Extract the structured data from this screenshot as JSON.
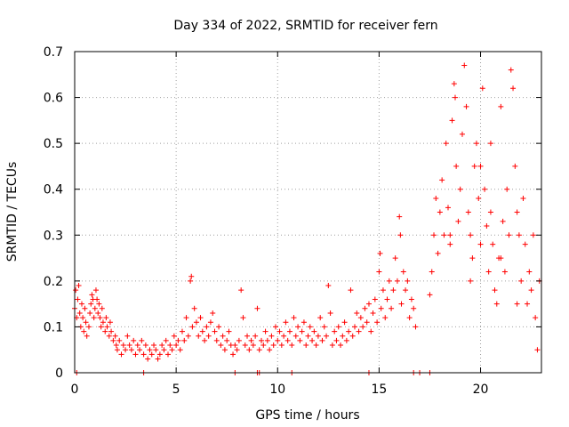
{
  "chart_data": {
    "type": "scatter",
    "title": "Day 334 of 2022, SRMTID for receiver fern",
    "xlabel": "GPS time / hours",
    "ylabel": "SRMTID / TECUs",
    "xlim": [
      0,
      23
    ],
    "ylim": [
      0,
      0.7
    ],
    "xticks": [
      0,
      5,
      10,
      15,
      20
    ],
    "yticks": [
      0,
      0.1,
      0.2,
      0.3,
      0.4,
      0.5,
      0.6,
      0.7
    ],
    "xtick_labels": [
      "0",
      "5",
      "10",
      "15",
      "20"
    ],
    "ytick_labels": [
      "0",
      "0.1",
      "0.2",
      "0.3",
      "0.4",
      "0.5",
      "0.6",
      "0.7"
    ],
    "grid": true,
    "marker": "plus",
    "color": "#ff0000",
    "series": [
      {
        "name": "SRMTID",
        "points": [
          [
            0.0,
            0.14
          ],
          [
            0.05,
            0.18
          ],
          [
            0.1,
            0.12
          ],
          [
            0.15,
            0.16
          ],
          [
            0.2,
            0.19
          ],
          [
            0.25,
            0.13
          ],
          [
            0.3,
            0.1
          ],
          [
            0.35,
            0.15
          ],
          [
            0.4,
            0.12
          ],
          [
            0.45,
            0.09
          ],
          [
            0.5,
            0.14
          ],
          [
            0.55,
            0.11
          ],
          [
            0.6,
            0.08
          ],
          [
            0.7,
            0.1
          ],
          [
            0.75,
            0.13
          ],
          [
            0.8,
            0.15
          ],
          [
            0.85,
            0.17
          ],
          [
            0.9,
            0.16
          ],
          [
            0.95,
            0.12
          ],
          [
            1.0,
            0.14
          ],
          [
            1.05,
            0.18
          ],
          [
            1.1,
            0.16
          ],
          [
            1.15,
            0.13
          ],
          [
            1.2,
            0.15
          ],
          [
            1.25,
            0.12
          ],
          [
            1.3,
            0.1
          ],
          [
            1.35,
            0.14
          ],
          [
            1.4,
            0.11
          ],
          [
            1.5,
            0.09
          ],
          [
            1.55,
            0.12
          ],
          [
            1.6,
            0.1
          ],
          [
            1.7,
            0.08
          ],
          [
            1.75,
            0.11
          ],
          [
            1.8,
            0.09
          ],
          [
            1.9,
            0.07
          ],
          [
            2.0,
            0.08
          ],
          [
            2.05,
            0.06
          ],
          [
            2.1,
            0.05
          ],
          [
            2.2,
            0.07
          ],
          [
            2.3,
            0.04
          ],
          [
            2.4,
            0.06
          ],
          [
            2.5,
            0.05
          ],
          [
            2.6,
            0.08
          ],
          [
            2.7,
            0.06
          ],
          [
            2.8,
            0.05
          ],
          [
            2.9,
            0.07
          ],
          [
            3.0,
            0.04
          ],
          [
            3.1,
            0.06
          ],
          [
            3.2,
            0.05
          ],
          [
            3.3,
            0.07
          ],
          [
            3.4,
            0.04
          ],
          [
            3.5,
            0.06
          ],
          [
            3.6,
            0.03
          ],
          [
            3.7,
            0.05
          ],
          [
            3.8,
            0.04
          ],
          [
            3.9,
            0.06
          ],
          [
            4.0,
            0.05
          ],
          [
            4.1,
            0.03
          ],
          [
            4.2,
            0.04
          ],
          [
            4.3,
            0.06
          ],
          [
            4.4,
            0.05
          ],
          [
            4.5,
            0.07
          ],
          [
            4.6,
            0.04
          ],
          [
            4.7,
            0.06
          ],
          [
            4.8,
            0.05
          ],
          [
            4.9,
            0.08
          ],
          [
            5.0,
            0.06
          ],
          [
            5.1,
            0.07
          ],
          [
            5.2,
            0.05
          ],
          [
            5.3,
            0.09
          ],
          [
            5.4,
            0.07
          ],
          [
            5.5,
            0.12
          ],
          [
            5.6,
            0.08
          ],
          [
            5.7,
            0.2
          ],
          [
            5.75,
            0.21
          ],
          [
            5.8,
            0.1
          ],
          [
            5.9,
            0.14
          ],
          [
            6.0,
            0.11
          ],
          [
            6.1,
            0.08
          ],
          [
            6.2,
            0.12
          ],
          [
            6.3,
            0.09
          ],
          [
            6.4,
            0.07
          ],
          [
            6.5,
            0.1
          ],
          [
            6.6,
            0.08
          ],
          [
            6.7,
            0.11
          ],
          [
            6.8,
            0.13
          ],
          [
            6.9,
            0.09
          ],
          [
            7.0,
            0.07
          ],
          [
            7.1,
            0.1
          ],
          [
            7.2,
            0.06
          ],
          [
            7.3,
            0.08
          ],
          [
            7.4,
            0.05
          ],
          [
            7.5,
            0.07
          ],
          [
            7.6,
            0.09
          ],
          [
            7.7,
            0.06
          ],
          [
            7.8,
            0.04
          ],
          [
            7.9,
            0.06
          ],
          [
            8.0,
            0.05
          ],
          [
            8.1,
            0.07
          ],
          [
            8.2,
            0.18
          ],
          [
            8.3,
            0.12
          ],
          [
            8.4,
            0.06
          ],
          [
            8.5,
            0.08
          ],
          [
            8.6,
            0.05
          ],
          [
            8.7,
            0.07
          ],
          [
            8.8,
            0.06
          ],
          [
            8.9,
            0.08
          ],
          [
            9.0,
            0.14
          ],
          [
            9.1,
            0.05
          ],
          [
            9.2,
            0.07
          ],
          [
            9.3,
            0.06
          ],
          [
            9.4,
            0.09
          ],
          [
            9.5,
            0.07
          ],
          [
            9.6,
            0.05
          ],
          [
            9.7,
            0.08
          ],
          [
            9.8,
            0.06
          ],
          [
            9.9,
            0.1
          ],
          [
            10.0,
            0.07
          ],
          [
            10.1,
            0.09
          ],
          [
            10.2,
            0.06
          ],
          [
            10.3,
            0.08
          ],
          [
            10.4,
            0.11
          ],
          [
            10.5,
            0.07
          ],
          [
            10.6,
            0.09
          ],
          [
            10.7,
            0.06
          ],
          [
            10.8,
            0.12
          ],
          [
            10.9,
            0.08
          ],
          [
            11.0,
            0.1
          ],
          [
            11.1,
            0.07
          ],
          [
            11.2,
            0.09
          ],
          [
            11.3,
            0.11
          ],
          [
            11.4,
            0.06
          ],
          [
            11.5,
            0.08
          ],
          [
            11.6,
            0.1
          ],
          [
            11.7,
            0.07
          ],
          [
            11.8,
            0.09
          ],
          [
            11.9,
            0.06
          ],
          [
            12.0,
            0.08
          ],
          [
            12.1,
            0.12
          ],
          [
            12.2,
            0.07
          ],
          [
            12.3,
            0.1
          ],
          [
            12.4,
            0.08
          ],
          [
            12.5,
            0.19
          ],
          [
            12.6,
            0.13
          ],
          [
            12.7,
            0.06
          ],
          [
            12.8,
            0.09
          ],
          [
            12.9,
            0.07
          ],
          [
            13.0,
            0.1
          ],
          [
            13.1,
            0.06
          ],
          [
            13.2,
            0.08
          ],
          [
            13.3,
            0.11
          ],
          [
            13.4,
            0.07
          ],
          [
            13.5,
            0.09
          ],
          [
            13.6,
            0.18
          ],
          [
            13.7,
            0.08
          ],
          [
            13.8,
            0.1
          ],
          [
            13.9,
            0.13
          ],
          [
            14.0,
            0.09
          ],
          [
            14.1,
            0.12
          ],
          [
            14.2,
            0.1
          ],
          [
            14.3,
            0.14
          ],
          [
            14.4,
            0.11
          ],
          [
            14.5,
            0.15
          ],
          [
            14.6,
            0.09
          ],
          [
            14.7,
            0.13
          ],
          [
            14.8,
            0.16
          ],
          [
            14.9,
            0.11
          ],
          [
            15.0,
            0.22
          ],
          [
            15.05,
            0.26
          ],
          [
            15.1,
            0.14
          ],
          [
            15.2,
            0.18
          ],
          [
            15.3,
            0.12
          ],
          [
            15.4,
            0.16
          ],
          [
            15.5,
            0.2
          ],
          [
            15.6,
            0.14
          ],
          [
            15.7,
            0.18
          ],
          [
            15.8,
            0.25
          ],
          [
            15.9,
            0.2
          ],
          [
            16.0,
            0.34
          ],
          [
            16.05,
            0.3
          ],
          [
            16.1,
            0.15
          ],
          [
            16.2,
            0.22
          ],
          [
            16.3,
            0.18
          ],
          [
            16.4,
            0.2
          ],
          [
            16.5,
            0.12
          ],
          [
            16.6,
            0.16
          ],
          [
            16.7,
            0.14
          ],
          [
            16.8,
            0.1
          ],
          [
            17.5,
            0.17
          ],
          [
            17.6,
            0.22
          ],
          [
            17.7,
            0.3
          ],
          [
            17.8,
            0.38
          ],
          [
            17.9,
            0.26
          ],
          [
            18.0,
            0.35
          ],
          [
            18.1,
            0.42
          ],
          [
            18.2,
            0.3
          ],
          [
            18.3,
            0.5
          ],
          [
            18.4,
            0.36
          ],
          [
            18.5,
            0.28
          ],
          [
            18.6,
            0.55
          ],
          [
            18.7,
            0.63
          ],
          [
            18.75,
            0.6
          ],
          [
            18.8,
            0.45
          ],
          [
            18.9,
            0.33
          ],
          [
            19.0,
            0.4
          ],
          [
            19.1,
            0.52
          ],
          [
            19.2,
            0.67
          ],
          [
            19.3,
            0.58
          ],
          [
            19.4,
            0.35
          ],
          [
            19.5,
            0.3
          ],
          [
            19.6,
            0.25
          ],
          [
            19.7,
            0.45
          ],
          [
            19.8,
            0.5
          ],
          [
            19.9,
            0.38
          ],
          [
            20.0,
            0.28
          ],
          [
            20.1,
            0.62
          ],
          [
            20.2,
            0.4
          ],
          [
            20.3,
            0.32
          ],
          [
            20.4,
            0.22
          ],
          [
            20.5,
            0.35
          ],
          [
            20.6,
            0.28
          ],
          [
            20.7,
            0.18
          ],
          [
            20.8,
            0.15
          ],
          [
            20.9,
            0.25
          ],
          [
            21.0,
            0.58
          ],
          [
            21.1,
            0.33
          ],
          [
            21.2,
            0.22
          ],
          [
            21.3,
            0.4
          ],
          [
            21.4,
            0.3
          ],
          [
            21.5,
            0.66
          ],
          [
            21.6,
            0.62
          ],
          [
            21.7,
            0.45
          ],
          [
            21.8,
            0.35
          ],
          [
            21.9,
            0.3
          ],
          [
            22.0,
            0.2
          ],
          [
            22.1,
            0.38
          ],
          [
            22.2,
            0.28
          ],
          [
            22.3,
            0.15
          ],
          [
            22.4,
            0.22
          ],
          [
            22.5,
            0.18
          ],
          [
            22.6,
            0.3
          ],
          [
            22.7,
            0.12
          ],
          [
            22.8,
            0.05
          ],
          [
            22.9,
            0.2
          ],
          [
            20.0,
            0.45
          ],
          [
            21.0,
            0.25
          ],
          [
            19.5,
            0.2
          ],
          [
            18.5,
            0.3
          ],
          [
            20.5,
            0.5
          ],
          [
            21.8,
            0.15
          ],
          [
            0.1,
            0.0
          ],
          [
            3.4,
            0.0
          ],
          [
            7.9,
            0.0
          ],
          [
            9.0,
            0.0
          ],
          [
            9.1,
            0.0
          ],
          [
            10.7,
            0.0
          ],
          [
            14.5,
            0.0
          ],
          [
            16.7,
            0.0
          ],
          [
            17.0,
            0.0
          ],
          [
            17.5,
            0.0
          ]
        ]
      }
    ]
  }
}
